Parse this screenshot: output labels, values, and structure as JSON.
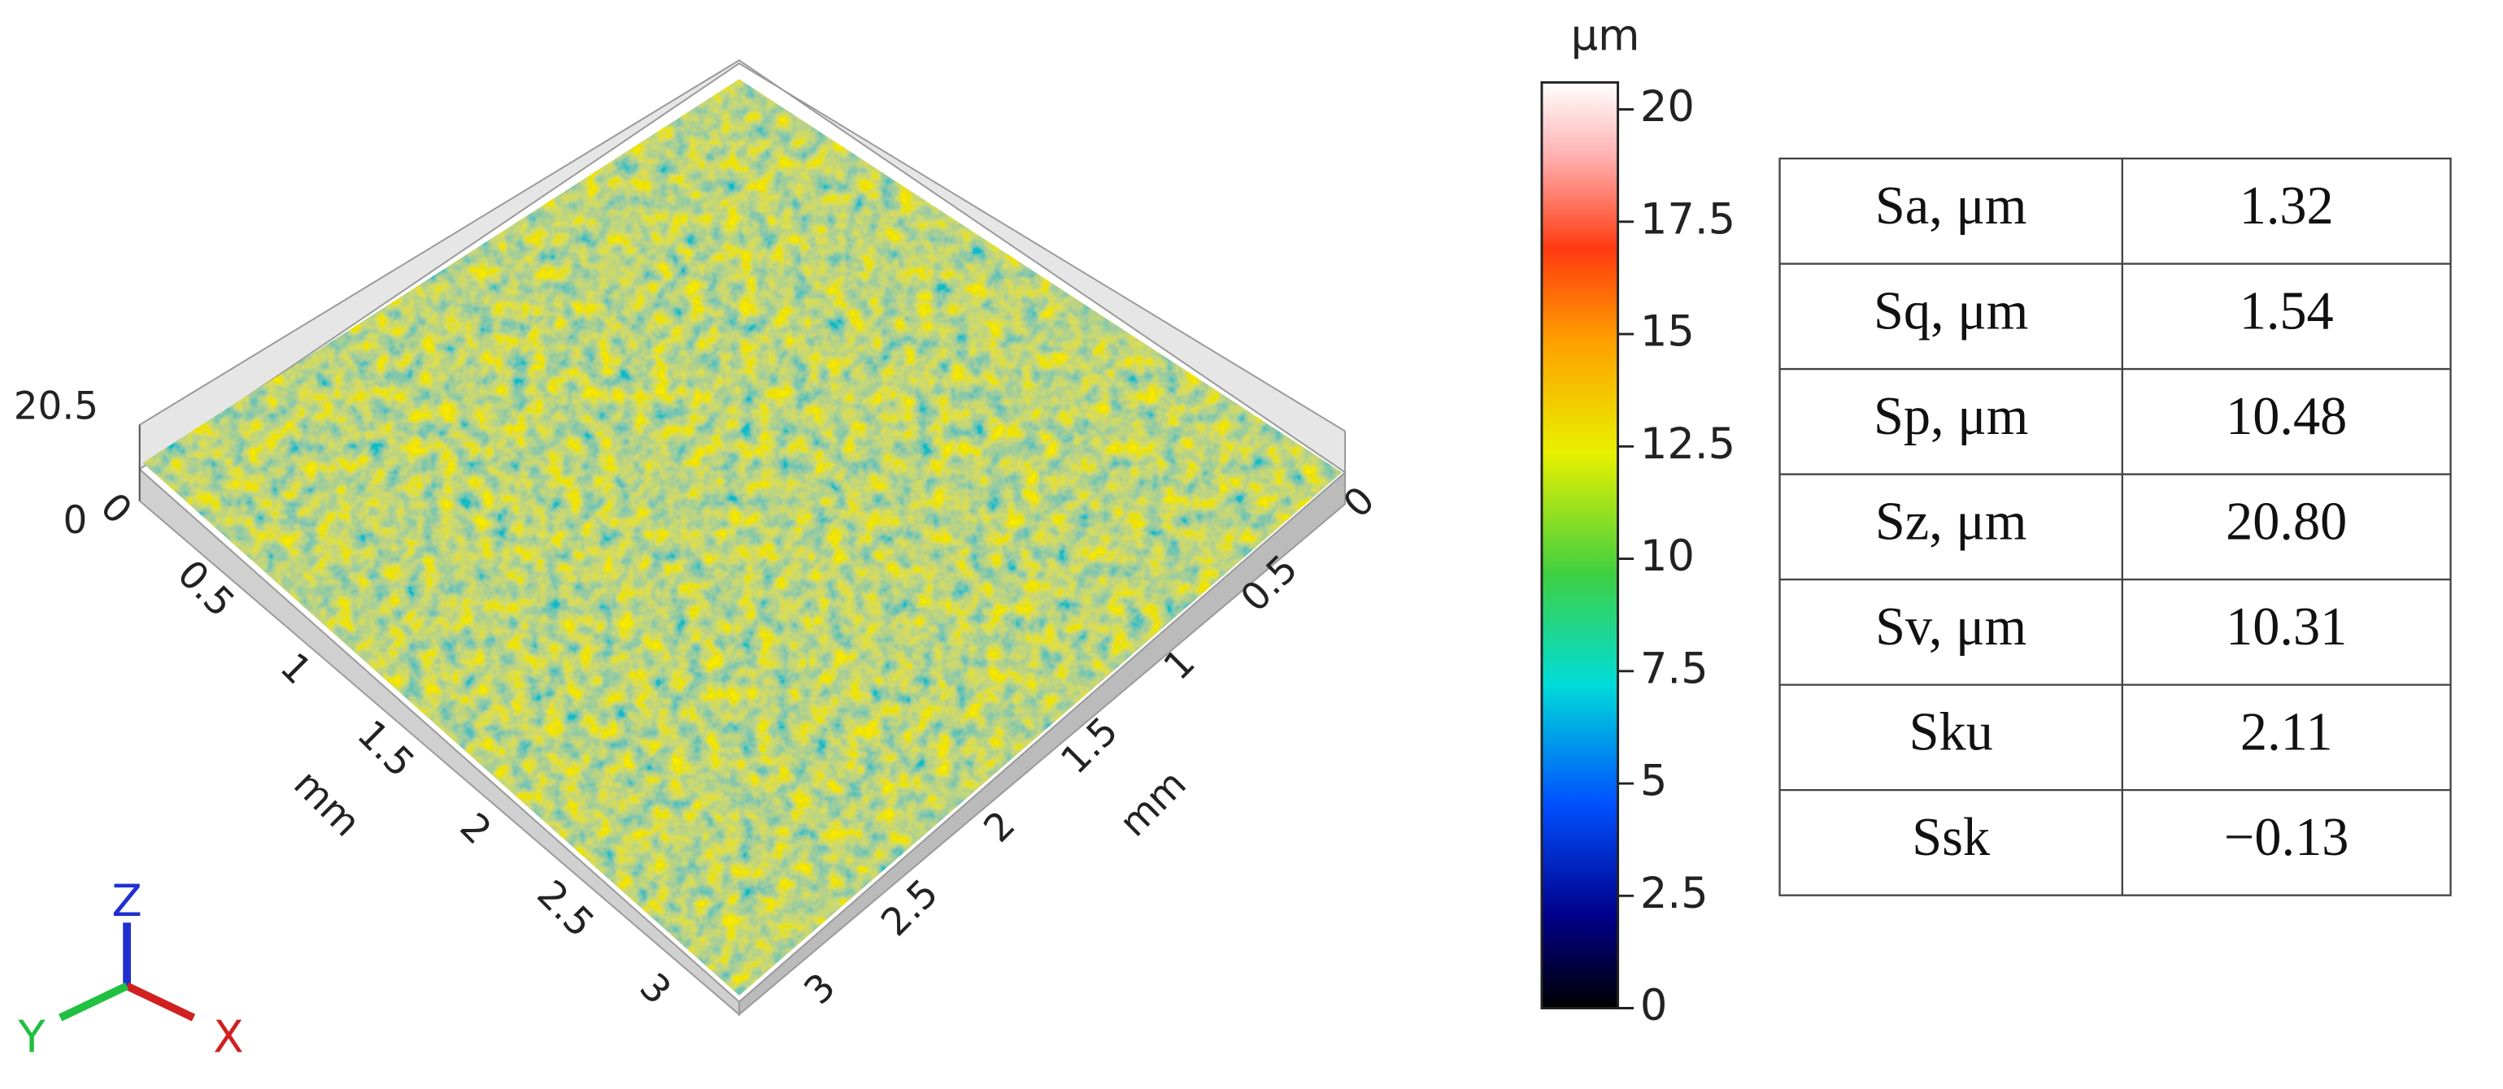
{
  "surface": {
    "z_max": "20.5",
    "z_min": "0",
    "left_axis": {
      "ticks": [
        "0",
        "0.5",
        "1",
        "1.5",
        "2",
        "2.5",
        "3"
      ],
      "label": "mm"
    },
    "right_axis": {
      "ticks": [
        "0",
        "0.5",
        "1",
        "1.5",
        "2",
        "2.5",
        "3"
      ],
      "label": "mm"
    },
    "triad": {
      "z": "Z",
      "y": "Y",
      "x": "X"
    }
  },
  "colorbar": {
    "unit": "μm",
    "lim": [
      0,
      20.6
    ],
    "ticks": [
      0,
      2.5,
      5,
      7.5,
      10,
      12.5,
      15,
      17.5,
      20
    ]
  },
  "table": {
    "rows": [
      [
        "Sa, μm",
        "1.32"
      ],
      [
        "Sq, μm",
        "1.54"
      ],
      [
        "Sp, μm",
        "10.48"
      ],
      [
        "Sz, μm",
        "20.80"
      ],
      [
        "Sv, μm",
        "10.31"
      ],
      [
        "Sku",
        "2.11"
      ],
      [
        "Ssk",
        "−0.13"
      ]
    ]
  }
}
